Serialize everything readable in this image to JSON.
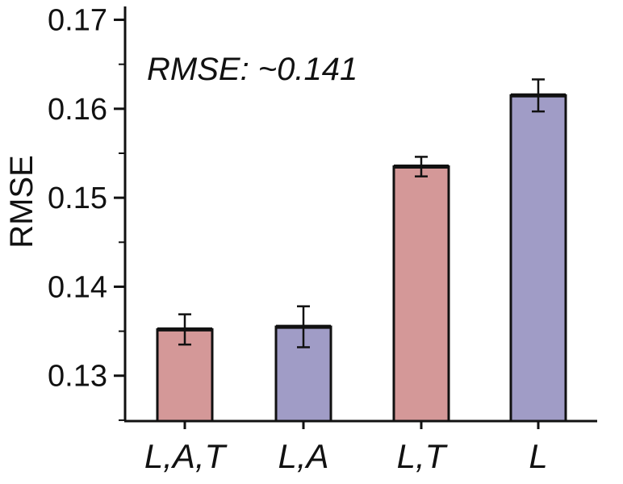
{
  "chart_data": {
    "type": "bar",
    "categories": [
      "L,A,T",
      "L,A",
      "L,T",
      "L"
    ],
    "values": [
      0.1352,
      0.1355,
      0.1535,
      0.1615
    ],
    "errors": [
      0.0017,
      0.0023,
      0.0011,
      0.0018
    ],
    "colors": [
      "#d49898",
      "#a09cc6",
      "#d49898",
      "#a09cc6"
    ],
    "ylabel": "RMSE",
    "xlabel": "",
    "title": "",
    "ylim": [
      0.1249,
      0.1715
    ],
    "yticks": [
      0.13,
      0.14,
      0.15,
      0.16,
      0.17
    ],
    "ytick_labels": [
      "0.13",
      "0.14",
      "0.15",
      "0.16",
      "0.17"
    ],
    "annotation": "RMSE: ~0.141",
    "grid": false,
    "legend": "none"
  }
}
